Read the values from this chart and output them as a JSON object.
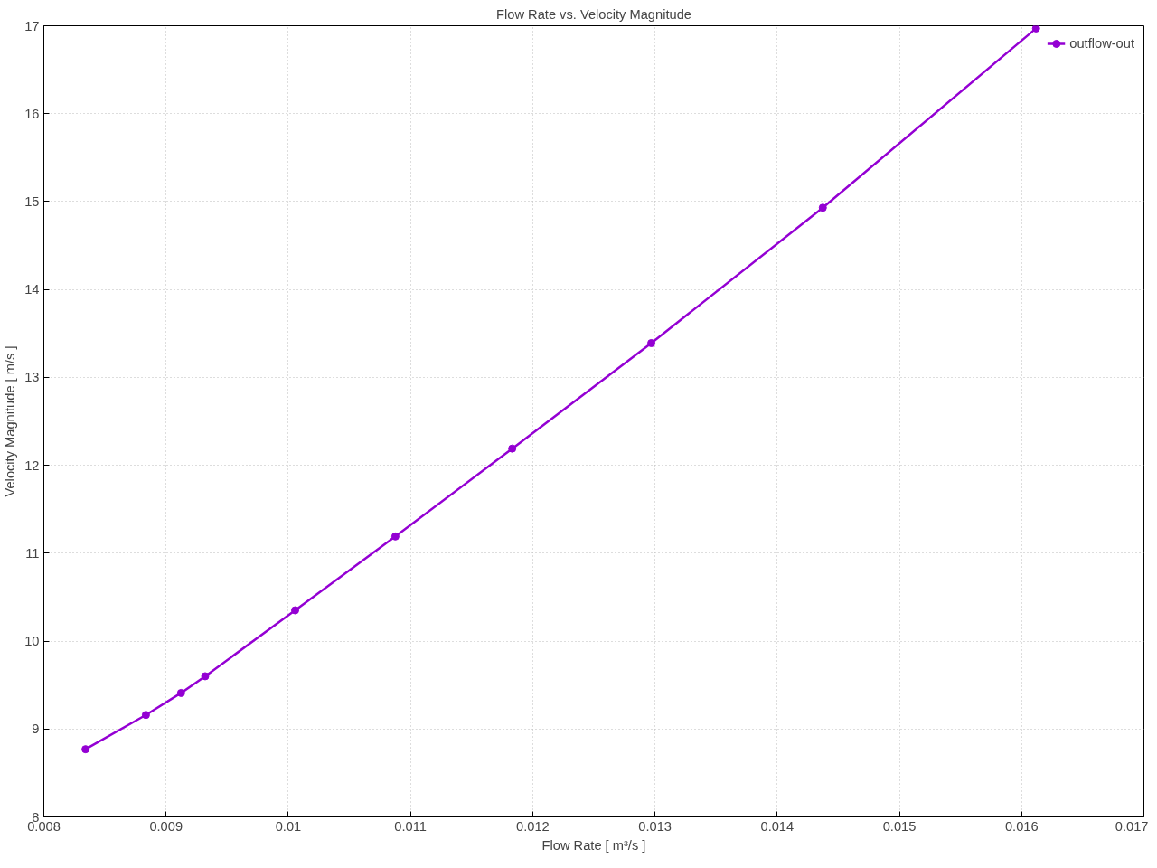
{
  "chart_data": {
    "type": "line",
    "title": "Flow Rate vs. Velocity Magnitude",
    "xlabel": "Flow Rate [ m³/s ]",
    "ylabel": "Velocity Magnitude [ m/s ]",
    "x": [
      0.008341,
      0.008835,
      0.009123,
      0.00932,
      0.010056,
      0.010876,
      0.011832,
      0.01297,
      0.014373,
      0.016118
    ],
    "series": [
      {
        "name": "outflow-out",
        "color": "#9400d3",
        "values": [
          8.77,
          9.16,
          9.41,
          9.6,
          10.35,
          11.19,
          12.19,
          13.39,
          14.93,
          16.97
        ]
      }
    ],
    "xlim": [
      0.008,
      0.017
    ],
    "xticks": [
      0.008,
      0.009,
      0.01,
      0.011,
      0.012,
      0.013,
      0.014,
      0.015,
      0.016,
      0.017
    ],
    "ylim": [
      8,
      17
    ],
    "yticks": [
      8,
      9,
      10,
      11,
      12,
      13,
      14,
      15,
      16,
      17
    ],
    "grid": true,
    "legend": "top right",
    "marker": "circle",
    "line_style": "solid"
  }
}
